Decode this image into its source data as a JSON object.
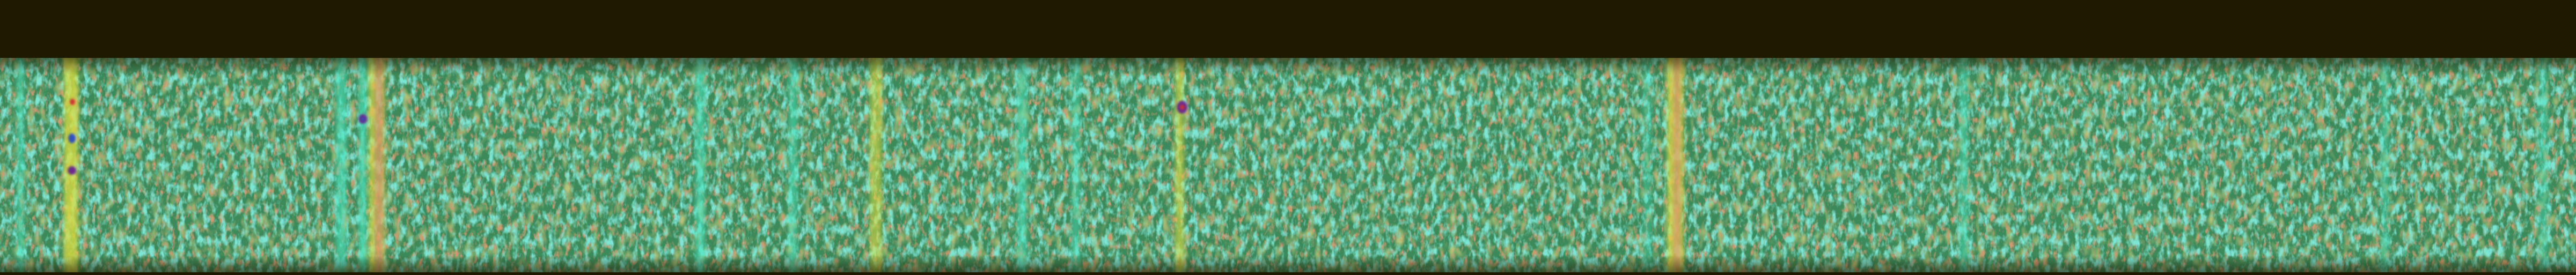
{
  "image": {
    "kind": "noise-texture band (spectrogram-like)",
    "colors": {
      "background": "#1e1a00",
      "band_base": "#3c8a5a",
      "band_teal": "#34c8a8",
      "band_olive": "#7a8a30",
      "band_rust": "#a0502a",
      "streak_teal": "#46e6c0",
      "streak_yellow": "#e0e040",
      "streak_pink": "#e05090",
      "blob_purple": "#6a2a90",
      "blob_blue": "#3050c0",
      "blob_red": "#d03030"
    }
  }
}
